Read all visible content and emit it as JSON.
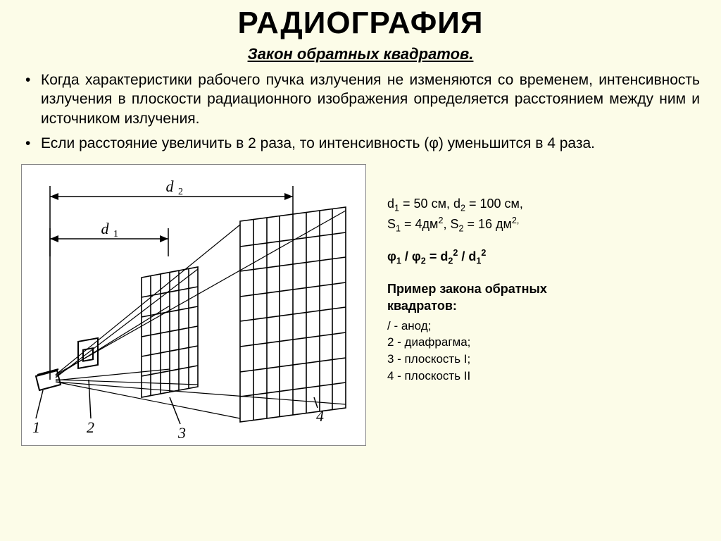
{
  "title": "РАДИОГРАФИЯ",
  "subtitle": "Закон обратных квадратов.",
  "bullets": [
    "Когда характеристики рабочего пучка излучения не изменяются со временем, интенсивность излучения в плоскости радиационного изображения определяется расстоянием между ним и источником излучения.",
    "Если расстояние увеличить в 2 раза, то интенсивность (φ) уменьшится в 4 раза."
  ],
  "diagram": {
    "background": "#ffffff",
    "stroke": "#000000",
    "stroke_width": 1.5,
    "labels": {
      "d1": "d₁",
      "d2": "d₂",
      "n1": "1",
      "n2": "2",
      "n3": "3",
      "n4": "4"
    },
    "label_font": {
      "family": "serif",
      "style": "italic",
      "size": 20
    },
    "grid1": {
      "rows": 6,
      "cols": 6
    },
    "grid2": {
      "rows": 8,
      "cols": 8
    }
  },
  "side": {
    "values_html": "d<sub>1</sub> = 50 см, d<sub>2</sub> = 100 см,<br>S<sub>1</sub> = 4дм<sup>2</sup>, S<sub>2</sub> = 16 дм<sup>2,</sup>",
    "formula_html": "φ<sub>1</sub> /  φ<sub>2</sub> = d<sub>2</sub><sup>2</sup> / d<sub>1</sub><sup>2</sup>",
    "example_title": "Пример закона обратных<br>квадратов:",
    "legend": [
      "/ - анод;",
      "2 - диафрагма;",
      "3 - плоскость I;",
      "4 - плоскость II"
    ]
  },
  "colors": {
    "page_bg": "#fcfce8",
    "text": "#000000"
  }
}
